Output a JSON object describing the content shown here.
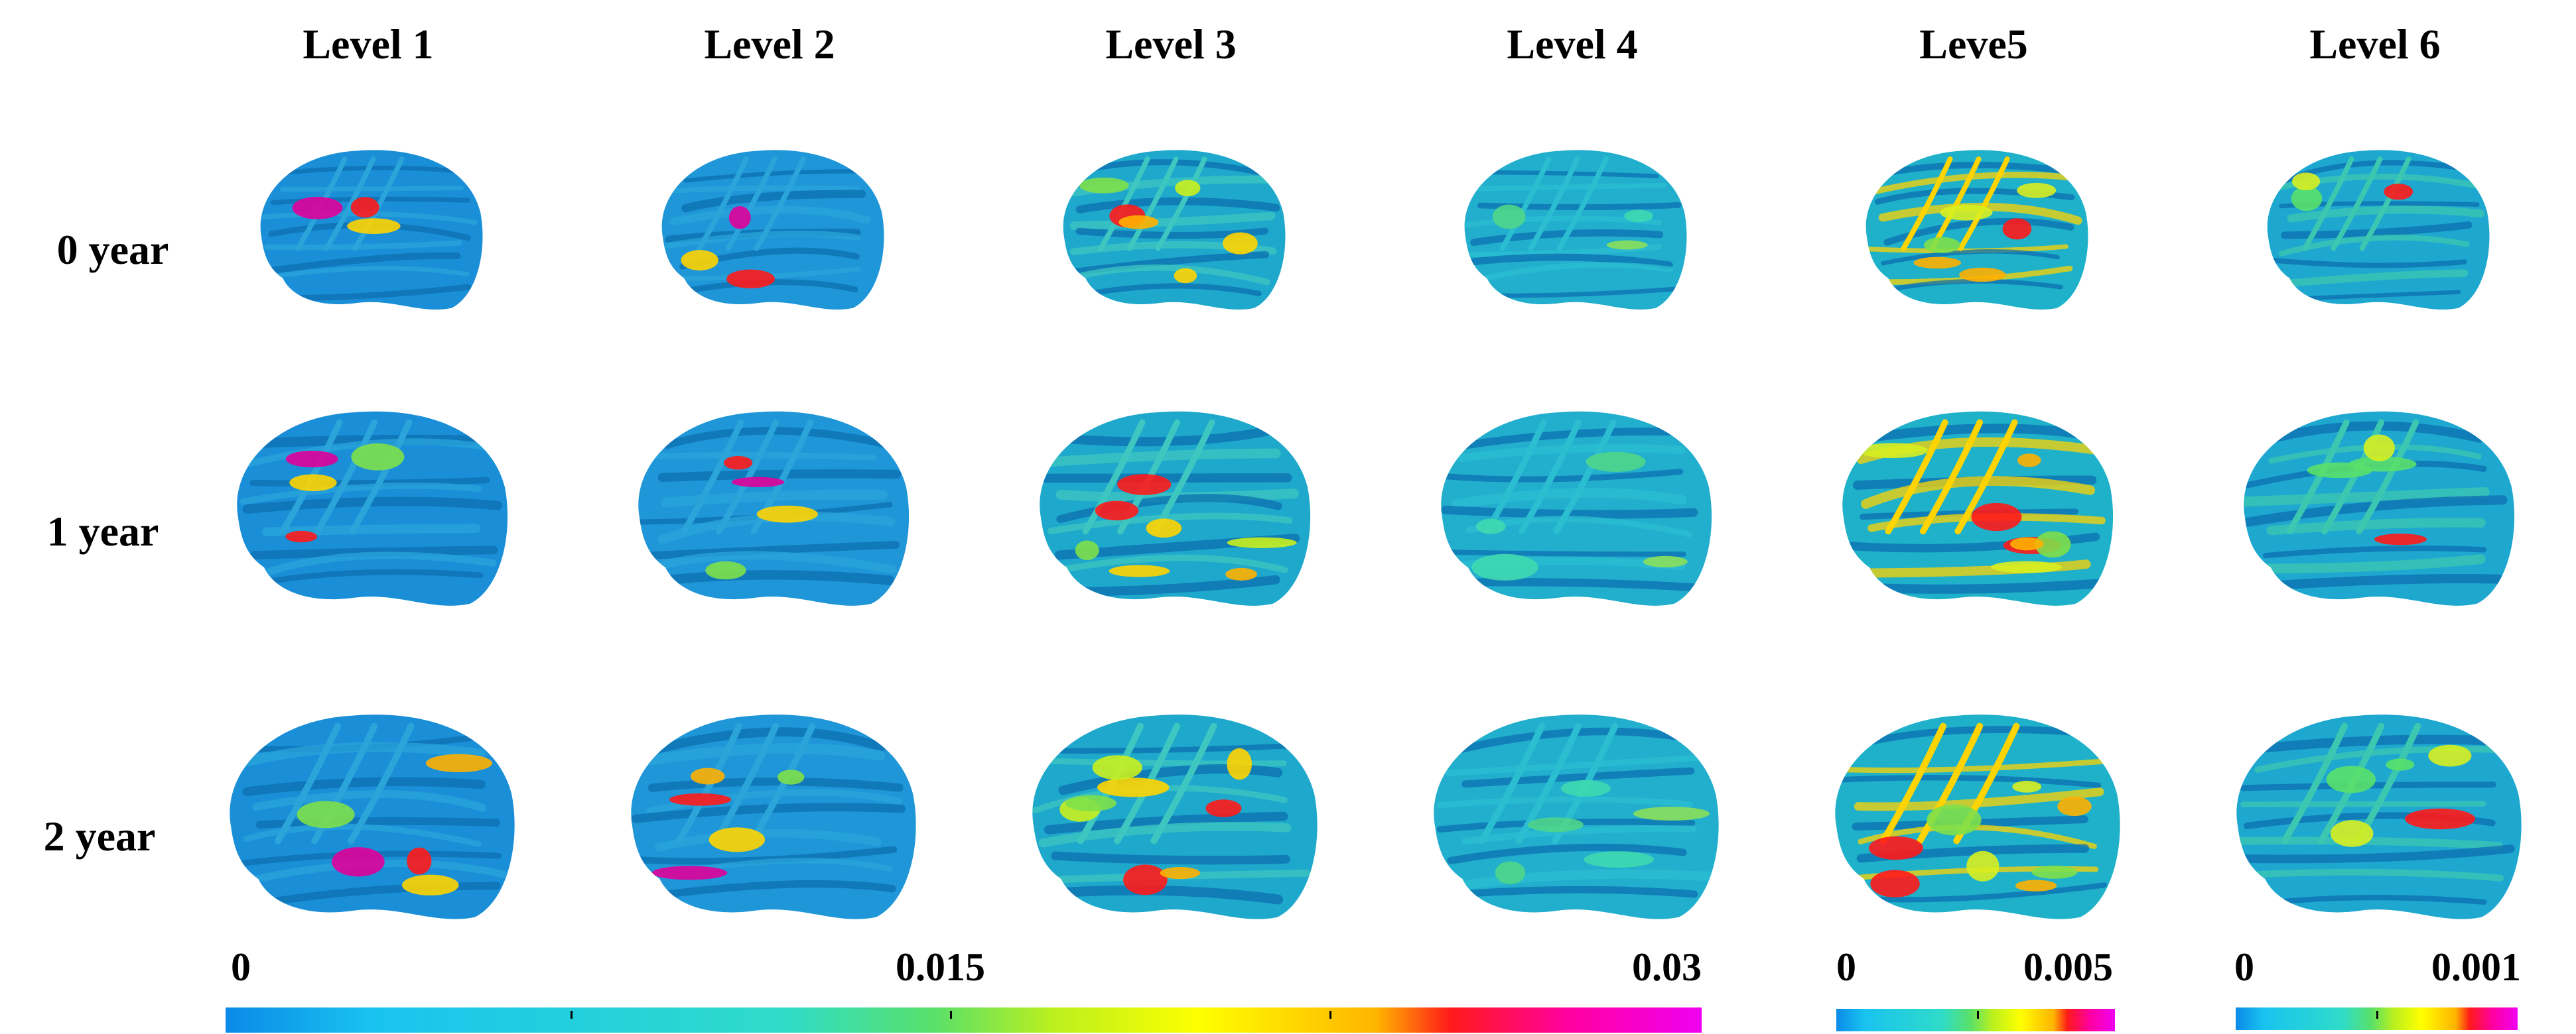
{
  "columns": [
    "Level 1",
    "Level 2",
    "Level 3",
    "Level 4",
    "Leve5",
    "Level 6"
  ],
  "rows": [
    "0 year",
    "1 year",
    "2 year"
  ],
  "colorbars": [
    {
      "min": "0",
      "mid": "0.015",
      "max": "0.03"
    },
    {
      "min": "0",
      "max": "0.005"
    },
    {
      "min": "0",
      "max": "0.001"
    }
  ],
  "colors": {
    "colormap": [
      "#0b8ae8",
      "#19c3f0",
      "#2fdcc8",
      "#59e06a",
      "#b9f01e",
      "#ffff00",
      "#ffb400",
      "#ff1a1a",
      "#ff00a0",
      "#f000f0"
    ],
    "surface_base": "#1fa6c8",
    "surface_dark": "#0e78c0"
  }
}
